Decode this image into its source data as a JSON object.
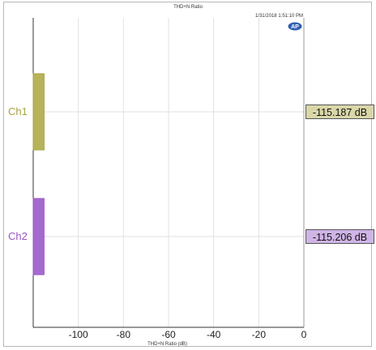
{
  "colors": {
    "ch1": "#a8a340",
    "ch1_fill": "#b7b35a",
    "ch1_readout_bg": "#d9d7a8",
    "ch2": "#9a55c4",
    "ch2_fill": "#a56ad0",
    "ch2_readout_bg": "#cfb4e6",
    "grid": "#e2e2e2",
    "axis": "#333333"
  },
  "chart_data": {
    "type": "bar",
    "orientation": "horizontal",
    "title": "THD+N Ratio",
    "timestamp": "1/31/2018 1:51:10 PM",
    "logo": "AP",
    "xlabel": "THD+N Ratio (dB)",
    "xlim": [
      -120,
      0
    ],
    "xticks": [
      -100,
      -80,
      -60,
      -40,
      -20,
      0
    ],
    "grid": true,
    "categories": [
      "Ch1",
      "Ch2"
    ],
    "values": [
      -115.187,
      -115.206
    ],
    "readouts": [
      "-115.187 dB",
      "-115.206 dB"
    ]
  }
}
